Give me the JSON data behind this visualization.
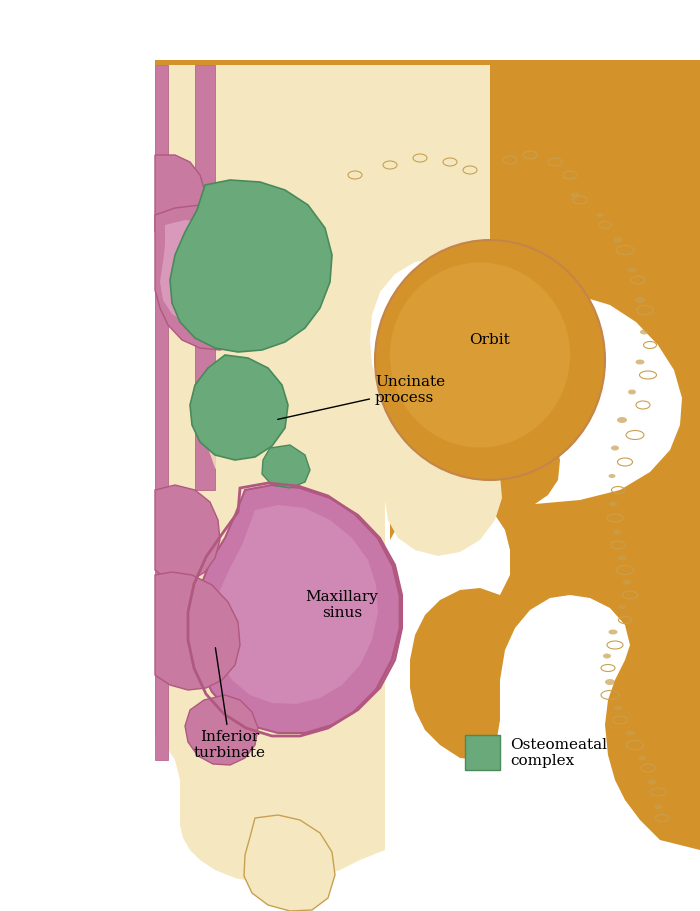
{
  "bg_color": "#ffffff",
  "orbit_color": "#d4922a",
  "orbit_light": "#e8b860",
  "bone_outer": "#f5e8c0",
  "bone_texture": "#c8a050",
  "mucosa_pink": "#c87aa0",
  "mucosa_dark": "#b05880",
  "maxillary_fill": "#c878a8",
  "green_osteomeatal": "#6aaa7a",
  "green_dark": "#4a8a5a",
  "cavity_cream": "#f5ead0",
  "label_orbit": "Orbit",
  "label_uncinate": "Uncinate\nprocess",
  "label_maxillary": "Maxillary\nsinus",
  "label_inferior": "Inferior\nturbinate",
  "legend_label": "Osteomeatal\ncomplex",
  "title_fontsize": 12,
  "annotation_fontsize": 11
}
